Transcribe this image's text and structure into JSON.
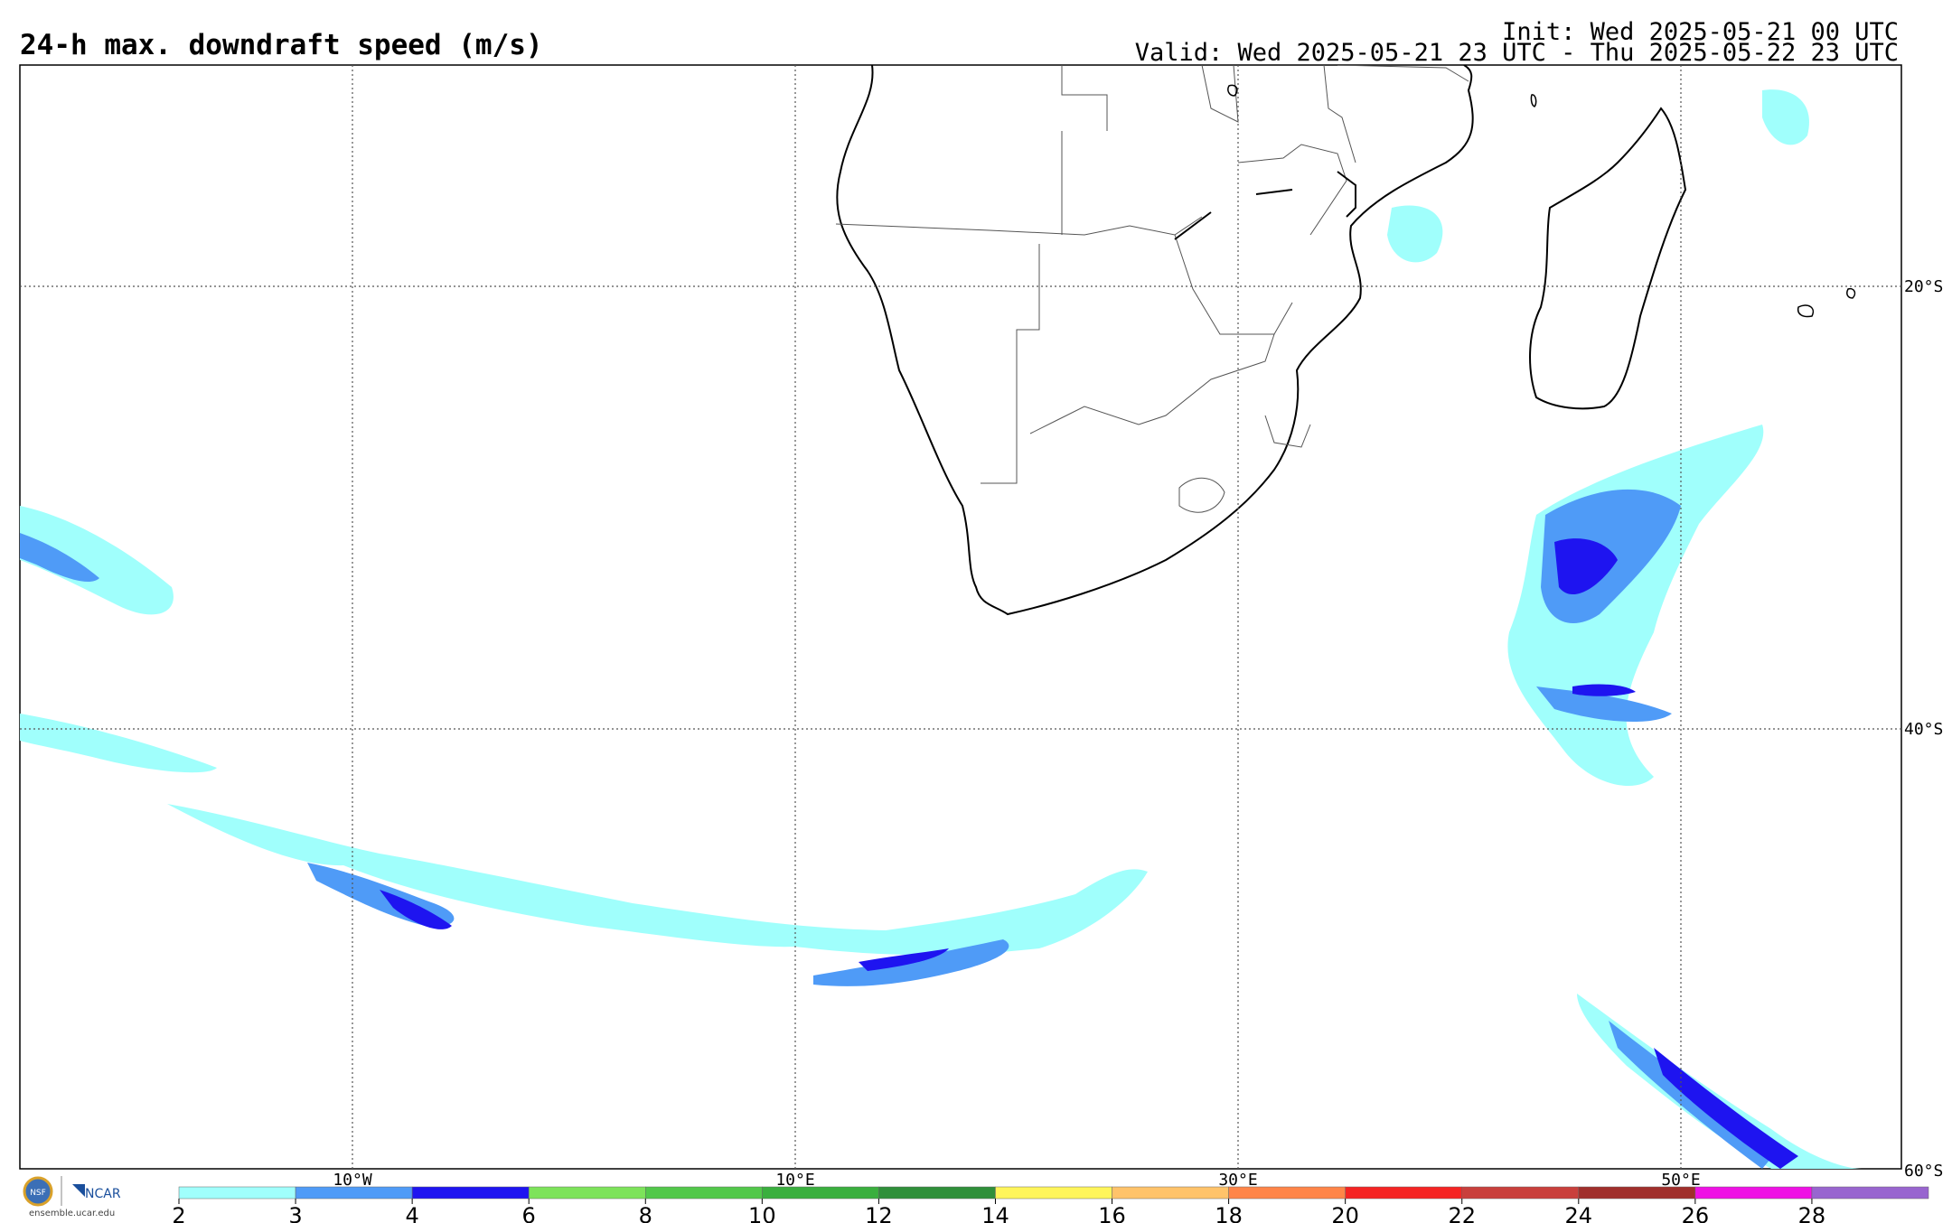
{
  "header": {
    "title": "24-h max. downdraft speed (m/s)",
    "init": "Init: Wed 2025-05-21 00 UTC",
    "valid": "Valid: Wed 2025-05-21 23 UTC - Thu 2025-05-22 23 UTC"
  },
  "map": {
    "lat_labels": [
      "20°S",
      "40°S",
      "60°S"
    ],
    "lon_labels": [
      "10°W",
      "10°E",
      "30°E",
      "50°E"
    ],
    "grid_style": "dotted"
  },
  "colorbar": {
    "ticks": [
      "2",
      "3",
      "4",
      "6",
      "8",
      "10",
      "12",
      "14",
      "16",
      "18",
      "20",
      "22",
      "24",
      "26",
      "28"
    ],
    "colors": [
      "#a0fffc",
      "#4f9bf7",
      "#1e14f0",
      "#7de35a",
      "#52c84a",
      "#3aaf3e",
      "#2f8f3a",
      "#fff55a",
      "#ffc36a",
      "#ff8548",
      "#f52423",
      "#c93f3c",
      "#a02f2c",
      "#ef11e4",
      "#9865cf"
    ]
  },
  "footer": {
    "logo_nsf": "NSF",
    "logo_ncar": "NCAR",
    "url": "ensemble.ucar.edu"
  },
  "colors": {
    "light_cyan": "#a0fffc",
    "mid_blue": "#4f9bf7",
    "dark_blue": "#1e14f0"
  }
}
